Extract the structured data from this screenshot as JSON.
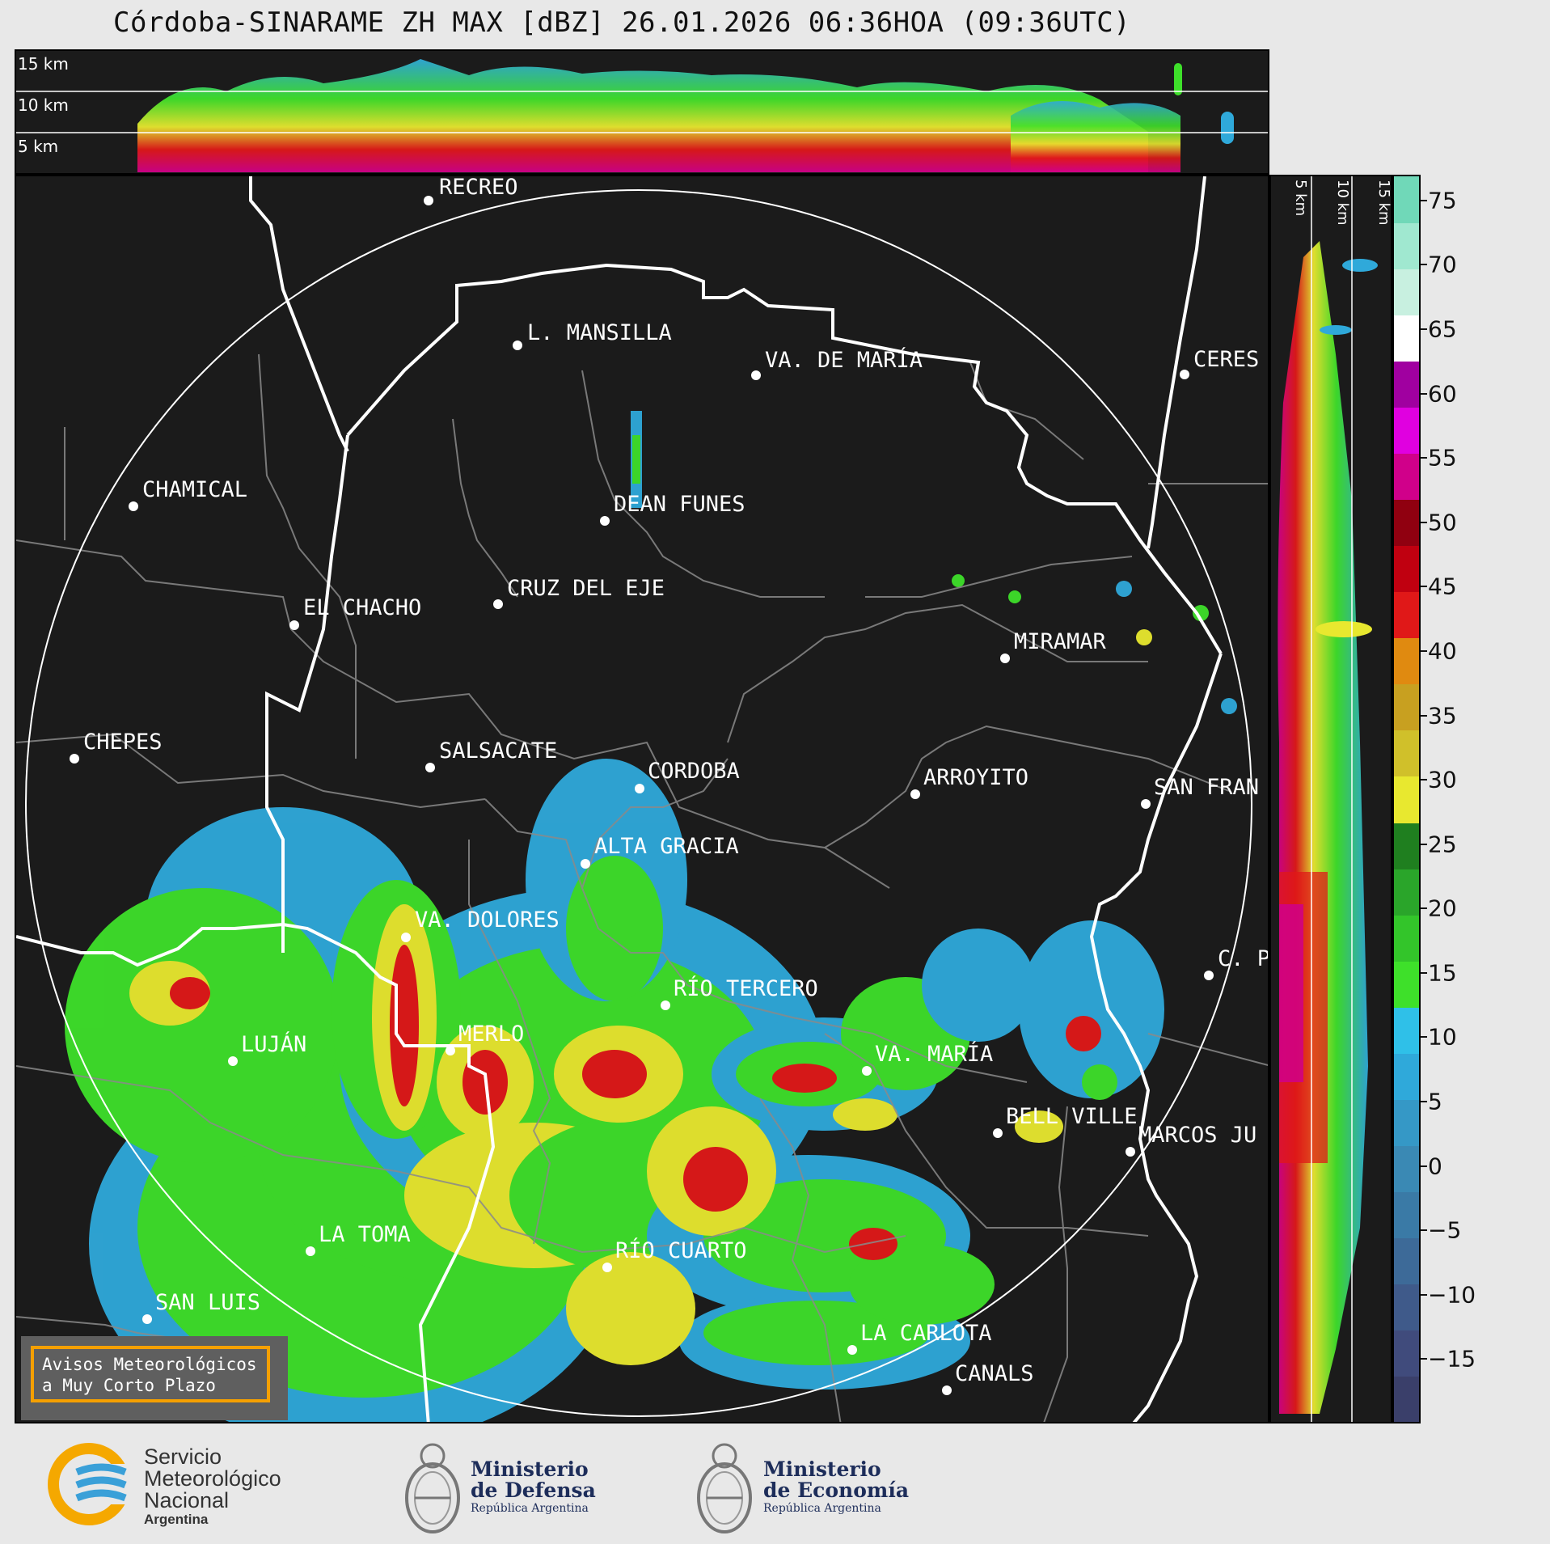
{
  "title": "Córdoba-SINARAME ZH MAX [dBZ] 26.01.2026 06:36HOA (09:36UTC)",
  "top_strip": {
    "labels": [
      "15 km",
      "10 km",
      "5 km"
    ]
  },
  "side_strip": {
    "labels": [
      "5 km",
      "10 km",
      "15 km"
    ]
  },
  "colorbar": {
    "ticks": [
      "75",
      "70",
      "65",
      "60",
      "55",
      "50",
      "45",
      "40",
      "35",
      "30",
      "25",
      "20",
      "15",
      "10",
      "5",
      "0",
      "−5",
      "−10",
      "−15"
    ],
    "range": [
      -20,
      77
    ],
    "colors": [
      "#3a3f6a",
      "#404b7c",
      "#3f5a8a",
      "#3d6a98",
      "#3a7aa6",
      "#3a89b4",
      "#3598c6",
      "#2fa9da",
      "#2fc0e8",
      "#3ee02a",
      "#33c52a",
      "#2aa52a",
      "#1f7f1f",
      "#e8e82f",
      "#d0c02a",
      "#c8a020",
      "#e08a10",
      "#e01818",
      "#c00010",
      "#900010",
      "#d0008a",
      "#e000e0",
      "#a000a0",
      "#ffffff",
      "#c8f0e0",
      "#a0e8d0",
      "#70d8b8"
    ]
  },
  "cities": [
    {
      "name": "RECREO"
    },
    {
      "name": "L. MANSILLA"
    },
    {
      "name": "VA. DE MARÍA"
    },
    {
      "name": "CERES"
    },
    {
      "name": "CHAMICAL"
    },
    {
      "name": "DEAN FUNES"
    },
    {
      "name": "CRUZ DEL EJE"
    },
    {
      "name": "EL CHACHO"
    },
    {
      "name": "MIRAMAR"
    },
    {
      "name": "CHEPES"
    },
    {
      "name": "SALSACATE"
    },
    {
      "name": "CORDOBA"
    },
    {
      "name": "ARROYITO"
    },
    {
      "name": "SAN FRAN"
    },
    {
      "name": "ALTA GRACIA"
    },
    {
      "name": "VA. DOLORES"
    },
    {
      "name": "RÍO TERCERO"
    },
    {
      "name": "C. P"
    },
    {
      "name": "LUJÁN"
    },
    {
      "name": "MERLO"
    },
    {
      "name": "VA. MARÍA"
    },
    {
      "name": "BELL VILLE"
    },
    {
      "name": "MARCOS JU"
    },
    {
      "name": "LA TOMA"
    },
    {
      "name": "RÍO CUARTO"
    },
    {
      "name": "SAN LUIS"
    },
    {
      "name": "LA CARLOTA"
    },
    {
      "name": "CANALS"
    }
  ],
  "avisos": {
    "line1": "Avisos Meteorológicos",
    "line2": "a Muy Corto Plazo"
  },
  "footer": {
    "smn": {
      "line1": "Servicio",
      "line2": "Meteorológico",
      "line3": "Nacional",
      "line4": "Argentina"
    },
    "defensa": {
      "line1": "Ministerio",
      "line2": "de Defensa",
      "line3": "República Argentina"
    },
    "economia": {
      "line1": "Ministerio",
      "line2": "de Economía",
      "line3": "República Argentina"
    }
  }
}
